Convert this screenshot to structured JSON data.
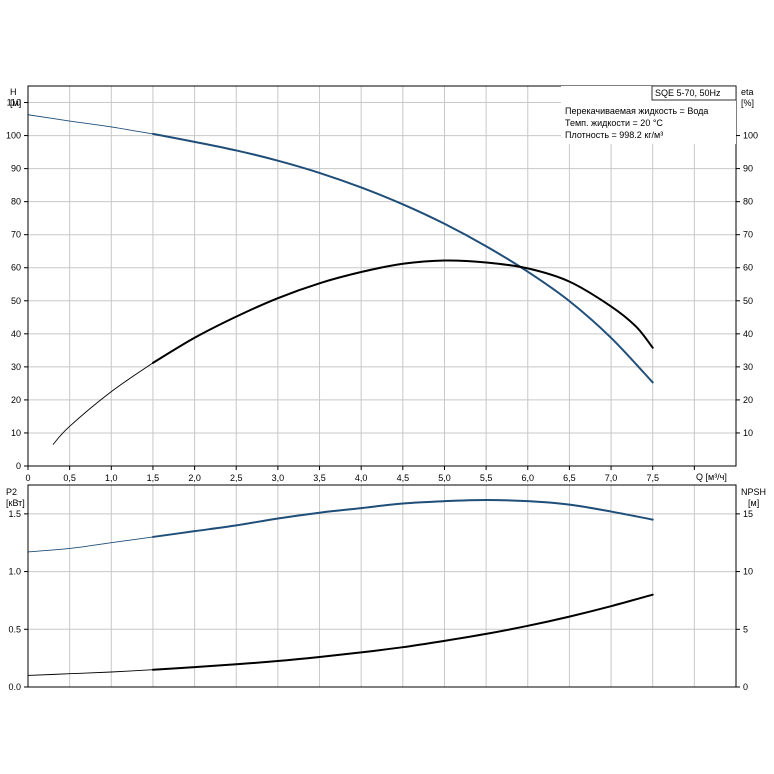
{
  "chart_data": [
    {
      "type": "line",
      "name": "top",
      "legend_box": "SQE 5-70, 50Hz",
      "info_lines": [
        "Перекачиваемая жидкость = Вода",
        "Темп. жидкости = 20 °C",
        "Плотность = 998.2 кг/м³"
      ],
      "y_left_label": [
        "H",
        "[м]"
      ],
      "y_right_label": [
        "eta",
        "[%]"
      ],
      "x_label": "Q [м³/ч]",
      "x_ticks": [
        "0",
        "0,5",
        "1,0",
        "1,5",
        "2,0",
        "2,5",
        "3,0",
        "3,5",
        "4,0",
        "4,5",
        "5,0",
        "5,5",
        "6,0",
        "6,5",
        "7,0",
        "7,5"
      ],
      "xlim": [
        0,
        8.5
      ],
      "ylim": [
        0,
        115
      ],
      "y_left_ticks": [
        0,
        10,
        20,
        30,
        40,
        50,
        60,
        70,
        80,
        90,
        100,
        110
      ],
      "y_right_ticks": [
        10,
        20,
        30,
        40,
        50,
        60,
        70,
        80,
        90,
        100
      ],
      "grid": true,
      "series": [
        {
          "color": "#1f4e79",
          "points": [
            [
              0,
              106.3
            ],
            [
              0.5,
              104.4
            ],
            [
              1.0,
              102.6
            ],
            [
              1.5,
              100.5
            ],
            [
              2.0,
              98.1
            ],
            [
              2.5,
              95.5
            ],
            [
              3.0,
              92.4
            ],
            [
              3.5,
              88.7
            ],
            [
              4.0,
              84.3
            ],
            [
              4.5,
              79.2
            ],
            [
              5.0,
              73.3
            ],
            [
              5.5,
              66.5
            ],
            [
              6.0,
              58.8
            ],
            [
              6.5,
              49.9
            ],
            [
              7.0,
              38.8
            ],
            [
              7.5,
              25.3
            ]
          ],
          "solid_from": 1.5
        },
        {
          "color": "#000000",
          "points": [
            [
              0.3,
              6.5
            ],
            [
              0.5,
              12.0
            ],
            [
              1.0,
              22.5
            ],
            [
              1.5,
              31.2
            ],
            [
              2.0,
              38.8
            ],
            [
              2.5,
              45.2
            ],
            [
              3.0,
              50.8
            ],
            [
              3.5,
              55.3
            ],
            [
              4.0,
              58.7
            ],
            [
              4.5,
              61.2
            ],
            [
              5.0,
              62.2
            ],
            [
              5.5,
              61.6
            ],
            [
              6.0,
              59.8
            ],
            [
              6.5,
              55.8
            ],
            [
              7.0,
              48.3
            ],
            [
              7.3,
              42.2
            ],
            [
              7.5,
              35.8
            ]
          ],
          "solid_from": 1.5
        }
      ]
    },
    {
      "type": "line",
      "name": "bottom",
      "y_left_label": [
        "P2",
        "[кВт]"
      ],
      "y_right_label": [
        "NPSH",
        "[м]"
      ],
      "xlim": [
        0,
        8.5
      ],
      "ylim": [
        0,
        1.75
      ],
      "y_left_ticks": [
        "0.0",
        "0.5",
        "1.0",
        "1.5"
      ],
      "y_right_ticks": [
        "0",
        "5",
        "10",
        "15"
      ],
      "grid": true,
      "series": [
        {
          "color": "#1f4e79",
          "points": [
            [
              0,
              1.17
            ],
            [
              0.5,
              1.2
            ],
            [
              1.0,
              1.25
            ],
            [
              1.5,
              1.3
            ],
            [
              2.0,
              1.35
            ],
            [
              2.5,
              1.4
            ],
            [
              3.0,
              1.46
            ],
            [
              3.5,
              1.51
            ],
            [
              4.0,
              1.55
            ],
            [
              4.5,
              1.59
            ],
            [
              5.0,
              1.61
            ],
            [
              5.5,
              1.62
            ],
            [
              6.0,
              1.61
            ],
            [
              6.5,
              1.58
            ],
            [
              7.0,
              1.52
            ],
            [
              7.5,
              1.45
            ]
          ],
          "solid_from": 1.5
        },
        {
          "color": "#000000",
          "points": [
            [
              0,
              0.1
            ],
            [
              0.5,
              0.115
            ],
            [
              1.0,
              0.13
            ],
            [
              1.5,
              0.15
            ],
            [
              2.0,
              0.172
            ],
            [
              2.5,
              0.197
            ],
            [
              3.0,
              0.225
            ],
            [
              3.5,
              0.26
            ],
            [
              4.0,
              0.3
            ],
            [
              4.5,
              0.345
            ],
            [
              5.0,
              0.4
            ],
            [
              5.5,
              0.46
            ],
            [
              6.0,
              0.53
            ],
            [
              6.5,
              0.61
            ],
            [
              7.0,
              0.7
            ],
            [
              7.5,
              0.8
            ]
          ],
          "solid_from": 1.5
        }
      ]
    }
  ]
}
